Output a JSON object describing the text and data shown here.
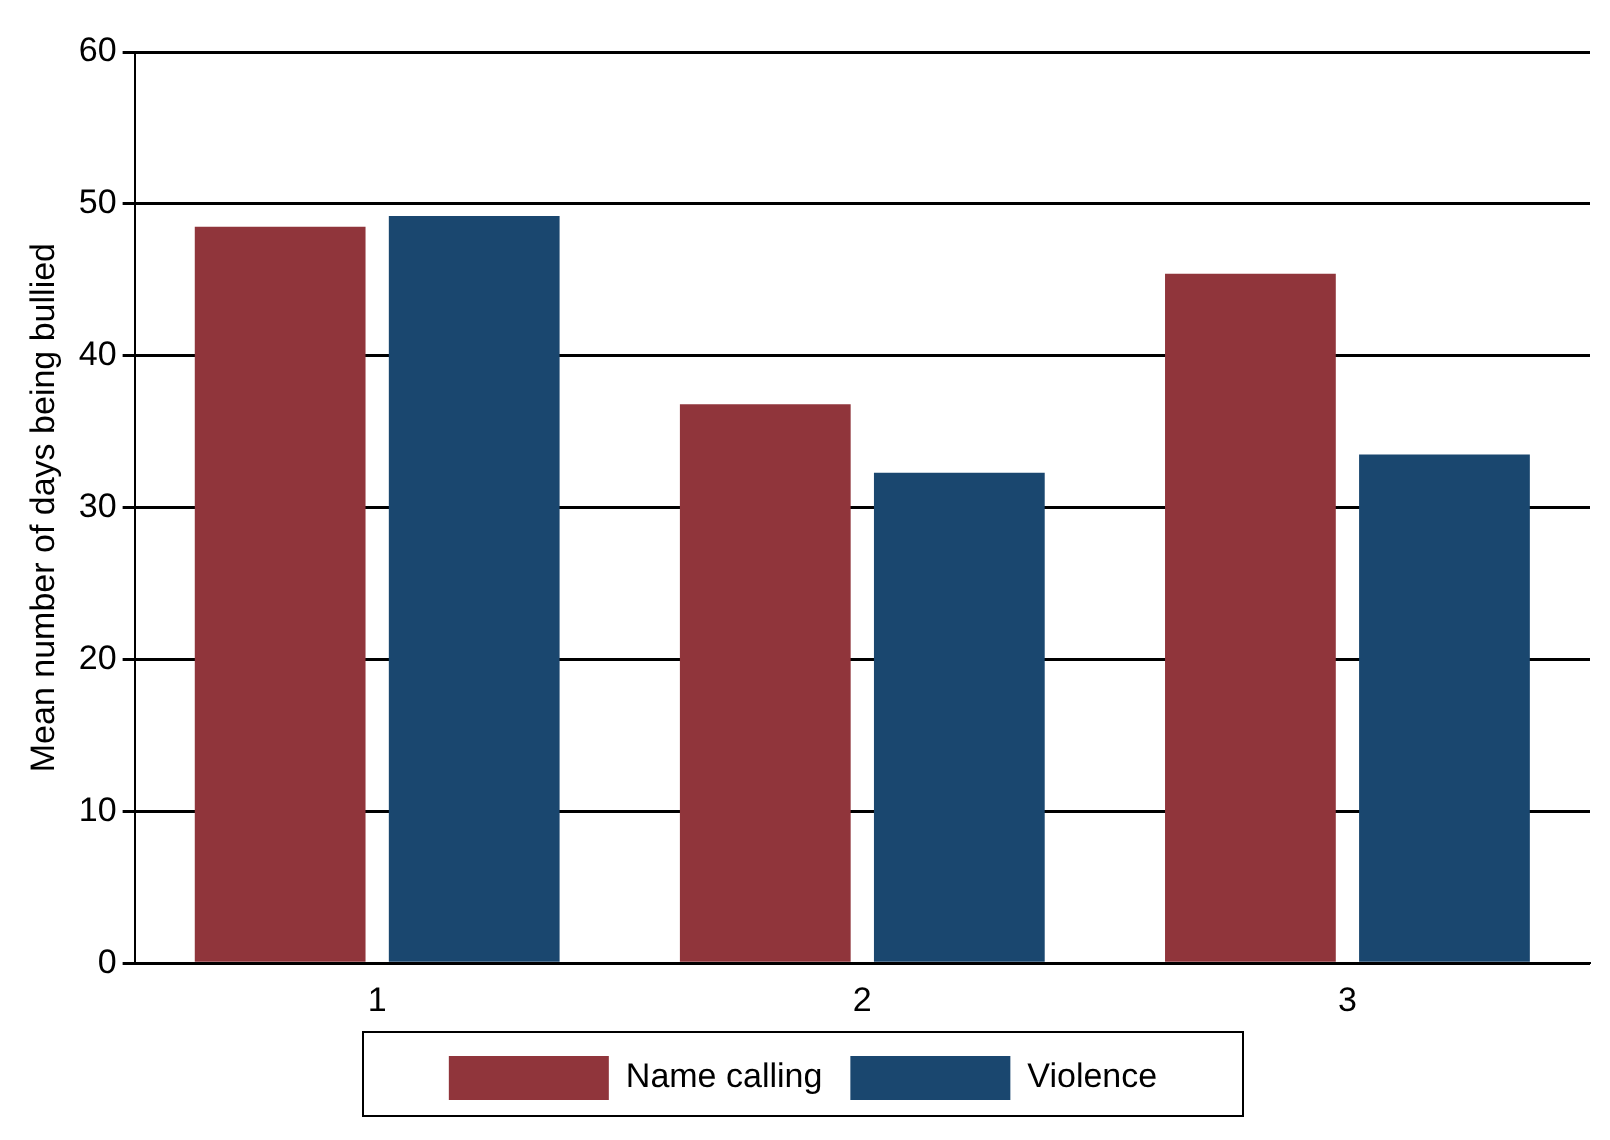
{
  "chart_data": {
    "type": "bar",
    "ylabel": "Mean number of days being bullied",
    "categories": [
      "1",
      "2",
      "3"
    ],
    "series": [
      {
        "name": "Name calling",
        "color": "#90353b",
        "values": [
          48.5,
          36.8,
          45.4
        ]
      },
      {
        "name": "Violence",
        "color": "#1a476f",
        "values": [
          49.2,
          32.3,
          33.5
        ]
      }
    ],
    "ylim": [
      0,
      60
    ],
    "yticks": [
      0,
      10,
      20,
      30,
      40,
      50,
      60
    ],
    "grid": "y",
    "legend": "bottom"
  }
}
